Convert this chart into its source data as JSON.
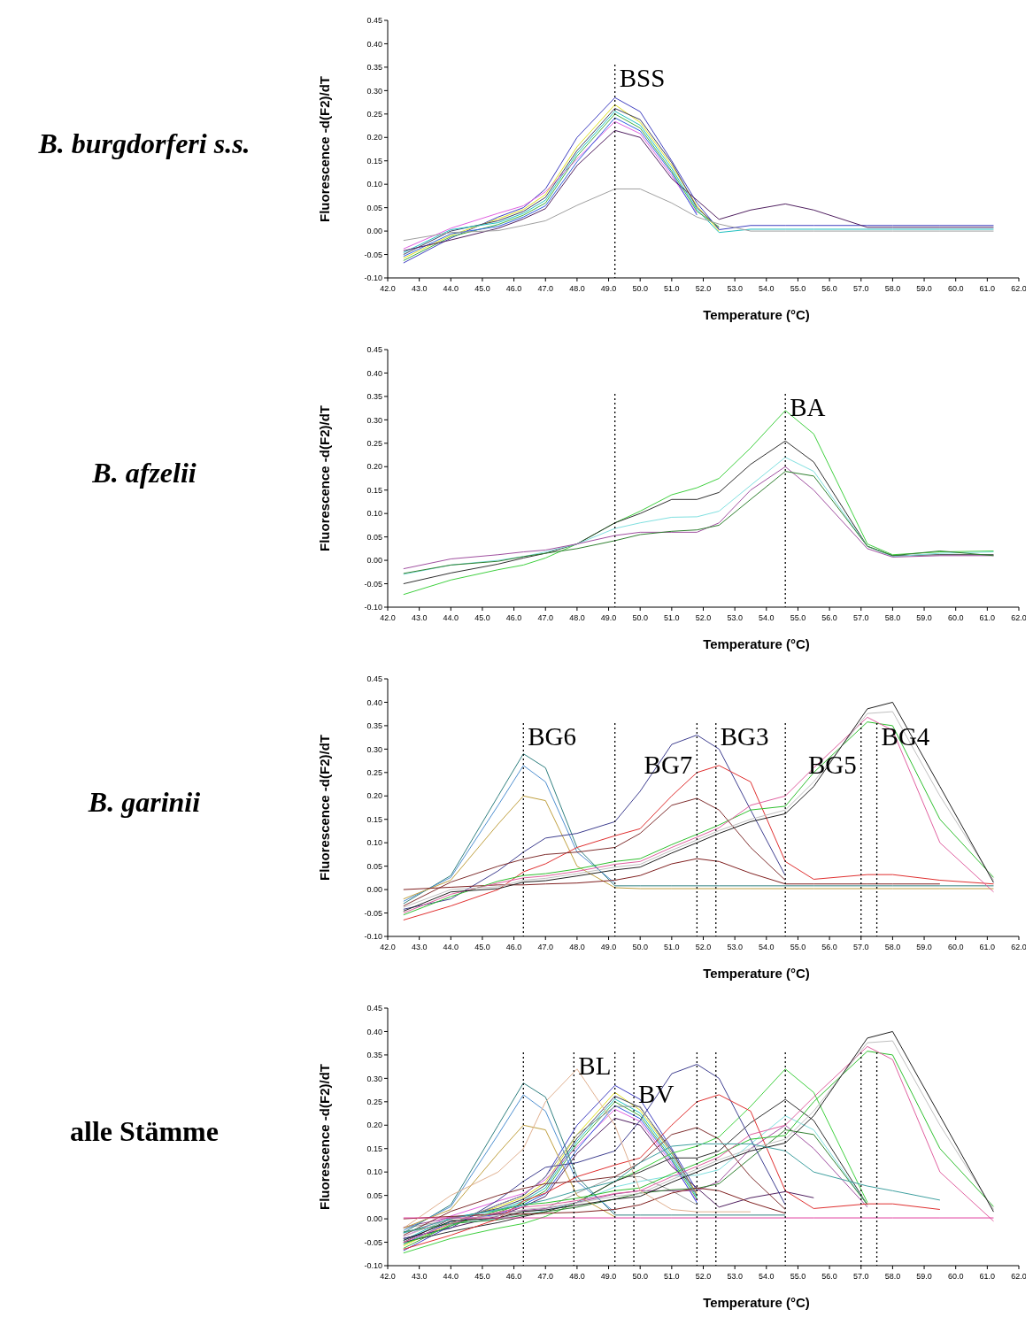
{
  "chart_data": [
    {
      "type": "line",
      "title": "B. burgdorferi s.s.",
      "xlabel": "Temperature (°C)",
      "ylabel": "Fluorescence -d(F2)/dT",
      "xlim": [
        42,
        62
      ],
      "ylim": [
        -0.1,
        0.45
      ],
      "xticks": [
        {
          "value": 42,
          "label": "42.0"
        },
        {
          "value": 43,
          "label": "43.0"
        },
        {
          "value": 44,
          "label": "44.0"
        },
        {
          "value": 45,
          "label": "45.0"
        },
        {
          "value": 46,
          "label": "46.0"
        },
        {
          "value": 47,
          "label": "47.0"
        },
        {
          "value": 48,
          "label": "48.0"
        },
        {
          "value": 49,
          "label": "49.0"
        },
        {
          "value": 50,
          "label": "50.0"
        },
        {
          "value": 51,
          "label": "51.0"
        },
        {
          "value": 52,
          "label": "52.0"
        },
        {
          "value": 53,
          "label": "53.0"
        },
        {
          "value": 54,
          "label": "54.0"
        },
        {
          "value": 55,
          "label": "55.0"
        },
        {
          "value": 56,
          "label": "56.0"
        },
        {
          "value": 57,
          "label": "57.0"
        },
        {
          "value": 58,
          "label": "58.0"
        },
        {
          "value": 59,
          "label": "59.0"
        },
        {
          "value": 60,
          "label": "60.0"
        },
        {
          "value": 61,
          "label": "61.0"
        },
        {
          "value": 62,
          "label": "62.0"
        }
      ],
      "yticks": [
        -0.05,
        {
          "value": -0.1,
          "label": "-0.10"
        },
        {
          "value": 0,
          "label": "0.00"
        },
        0.05,
        {
          "value": 0.1,
          "label": "0.10"
        },
        0.15,
        {
          "value": 0.2,
          "label": "0.20"
        },
        0.25,
        {
          "value": 0.3,
          "label": "0.30"
        },
        0.35,
        {
          "value": 0.4,
          "label": "0.40"
        },
        0.45
      ],
      "x": [
        42.5,
        44,
        45.5,
        46.3,
        47,
        48,
        49.2,
        50,
        51,
        51.8,
        52.5,
        53.5,
        54.6,
        55.5,
        57.2,
        58,
        59.5,
        61.2
      ],
      "series": [
        {
          "color": "#4040c0",
          "values": [
            -0.068,
            -0.015,
            0.03,
            0.05,
            0.09,
            0.2,
            0.285,
            0.255,
            0.15,
            0.06,
            0.003,
            0.012,
            0.012,
            0.012,
            0.012,
            0.012,
            0.012,
            0.012
          ]
        },
        {
          "color": "#e0e020",
          "values": [
            -0.058,
            -0.009,
            0.026,
            0.046,
            0.078,
            0.18,
            0.27,
            0.232,
            0.14,
            0.054,
            0,
            null,
            null,
            null,
            null,
            null,
            null,
            null
          ]
        },
        {
          "color": "#404060",
          "values": [
            -0.05,
            0,
            0.022,
            0.042,
            0.072,
            0.172,
            0.262,
            0.238,
            0.146,
            0.05,
            0.006,
            null,
            null,
            null,
            null,
            null,
            null,
            null
          ]
        },
        {
          "color": "#20c0c0",
          "values": [
            -0.046,
            0.003,
            0.018,
            0.038,
            0.066,
            0.166,
            0.256,
            0.226,
            0.134,
            0.046,
            -0.003,
            0.004,
            0.004,
            0.004,
            0.004,
            0.004,
            0.004,
            0.004
          ]
        },
        {
          "color": "#40b040",
          "values": [
            -0.063,
            -0.012,
            0.014,
            0.034,
            0.06,
            0.16,
            0.25,
            0.22,
            0.128,
            0.042,
            0.009,
            null,
            null,
            null,
            null,
            null,
            null,
            null
          ]
        },
        {
          "color": "#e060e0",
          "values": [
            -0.038,
            0.006,
            0.038,
            0.054,
            0.084,
            0.154,
            0.234,
            0.208,
            0.118,
            0.038,
            null,
            null,
            null,
            null,
            null,
            null,
            null,
            null
          ]
        },
        {
          "color": "#3060e0",
          "values": [
            -0.054,
            -0.006,
            0.01,
            0.03,
            0.054,
            0.148,
            0.242,
            0.214,
            0.124,
            0.034,
            null,
            null,
            null,
            null,
            null,
            null,
            null,
            null
          ]
        },
        {
          "color": "#502060",
          "values": [
            -0.042,
            -0.019,
            0.006,
            0.026,
            0.048,
            0.14,
            0.215,
            0.2,
            0.112,
            0.066,
            0.025,
            0.045,
            0.058,
            0.045,
            0.008,
            0.008,
            0.008,
            0.008
          ]
        },
        {
          "color": "#a0a0a0",
          "values": [
            -0.02,
            -0.003,
            0.001,
            0.012,
            0.022,
            0.055,
            0.09,
            0.09,
            0.06,
            0.03,
            0.015,
            0,
            0,
            0,
            0,
            0,
            0,
            0
          ]
        }
      ],
      "ref_lines": [
        {
          "axis": "x",
          "value": 49.2,
          "label": "BSS"
        }
      ]
    },
    {
      "type": "line",
      "title": "B. afzelii",
      "xlabel": "Temperature (°C)",
      "ylabel": "Fluorescence -d(F2)/dT",
      "xlim": [
        42,
        62
      ],
      "ylim": [
        -0.1,
        0.45
      ],
      "xticks": [
        {
          "value": 42,
          "label": "42.0"
        },
        {
          "value": 43,
          "label": "43.0"
        },
        {
          "value": 44,
          "label": "44.0"
        },
        {
          "value": 45,
          "label": "45.0"
        },
        {
          "value": 46,
          "label": "46.0"
        },
        {
          "value": 47,
          "label": "47.0"
        },
        {
          "value": 48,
          "label": "48.0"
        },
        {
          "value": 49,
          "label": "49.0"
        },
        {
          "value": 50,
          "label": "50.0"
        },
        {
          "value": 51,
          "label": "51.0"
        },
        {
          "value": 52,
          "label": "52.0"
        },
        {
          "value": 53,
          "label": "53.0"
        },
        {
          "value": 54,
          "label": "54.0"
        },
        {
          "value": 55,
          "label": "55.0"
        },
        {
          "value": 56,
          "label": "56.0"
        },
        {
          "value": 57,
          "label": "57.0"
        },
        {
          "value": 58,
          "label": "58.0"
        },
        {
          "value": 59,
          "label": "59.0"
        },
        {
          "value": 60,
          "label": "60.0"
        },
        {
          "value": 61,
          "label": "61.0"
        },
        {
          "value": 62,
          "label": "62.0"
        }
      ],
      "yticks": [
        -0.05,
        {
          "value": -0.1,
          "label": "-0.10"
        },
        {
          "value": 0,
          "label": "0.00"
        },
        0.05,
        {
          "value": 0.1,
          "label": "0.10"
        },
        0.15,
        {
          "value": 0.2,
          "label": "0.20"
        },
        0.25,
        {
          "value": 0.3,
          "label": "0.30"
        },
        0.35,
        {
          "value": 0.4,
          "label": "0.40"
        },
        0.45
      ],
      "x": [
        42.5,
        44,
        45.5,
        46.3,
        47,
        48,
        49.2,
        50,
        51,
        51.8,
        52.5,
        53.5,
        54.6,
        55.5,
        57.2,
        58,
        59.5,
        61.2
      ],
      "series": [
        {
          "color": "#40d040",
          "values": [
            -0.073,
            -0.042,
            -0.02,
            -0.01,
            0.005,
            0.035,
            0.08,
            0.105,
            0.14,
            0.155,
            0.175,
            0.24,
            0.32,
            0.27,
            0.035,
            0.012,
            0.018,
            0.02
          ]
        },
        {
          "color": "#303030",
          "values": [
            -0.05,
            -0.027,
            -0.008,
            0.005,
            0.015,
            0.035,
            0.08,
            0.1,
            0.13,
            0.13,
            0.145,
            0.205,
            0.255,
            0.21,
            0.03,
            0.01,
            0.012,
            0.012
          ]
        },
        {
          "color": "#80e0e0",
          "values": [
            -0.03,
            -0.01,
            0,
            0.008,
            0.018,
            0.035,
            0.068,
            0.08,
            0.092,
            0.093,
            0.105,
            0.16,
            0.22,
            0.19,
            0.03,
            0.008,
            0.015,
            0.018
          ]
        },
        {
          "color": "#a050a0",
          "values": [
            -0.018,
            0.003,
            0.012,
            0.018,
            0.022,
            0.035,
            0.053,
            0.06,
            0.06,
            0.06,
            0.08,
            0.15,
            0.2,
            0.15,
            0.025,
            0.007,
            0.01,
            0.01
          ]
        },
        {
          "color": "#308030",
          "values": [
            -0.028,
            -0.01,
            -0.002,
            0.008,
            0.015,
            0.025,
            0.042,
            0.055,
            0.062,
            0.065,
            0.075,
            0.13,
            0.19,
            0.18,
            0.03,
            0.01,
            0.02,
            0.01
          ]
        }
      ],
      "ref_lines": [
        {
          "axis": "x",
          "value": 49.2,
          "label": null
        },
        {
          "axis": "x",
          "value": 54.6,
          "label": "BA"
        }
      ]
    },
    {
      "type": "line",
      "title": "B. garinii",
      "xlabel": "Temperature (°C)",
      "ylabel": "Fluorescence -d(F2)/dT",
      "xlim": [
        42,
        62
      ],
      "ylim": [
        -0.1,
        0.45
      ],
      "xticks": [
        {
          "value": 42,
          "label": "42.0"
        },
        {
          "value": 43,
          "label": "43.0"
        },
        {
          "value": 44,
          "label": "44.0"
        },
        {
          "value": 45,
          "label": "45.0"
        },
        {
          "value": 46,
          "label": "46.0"
        },
        {
          "value": 47,
          "label": "47.0"
        },
        {
          "value": 48,
          "label": "48.0"
        },
        {
          "value": 49,
          "label": "49.0"
        },
        {
          "value": 50,
          "label": "50.0"
        },
        {
          "value": 51,
          "label": "51.0"
        },
        {
          "value": 52,
          "label": "52.0"
        },
        {
          "value": 53,
          "label": "53.0"
        },
        {
          "value": 54,
          "label": "54.0"
        },
        {
          "value": 55,
          "label": "55.0"
        },
        {
          "value": 56,
          "label": "56.0"
        },
        {
          "value": 57,
          "label": "57.0"
        },
        {
          "value": 58,
          "label": "58.0"
        },
        {
          "value": 59,
          "label": "59.0"
        },
        {
          "value": 60,
          "label": "60.0"
        },
        {
          "value": 61,
          "label": "61.0"
        },
        {
          "value": 62,
          "label": "62.0"
        }
      ],
      "yticks": [
        -0.05,
        {
          "value": -0.1,
          "label": "-0.10"
        },
        {
          "value": 0,
          "label": "0.00"
        },
        0.05,
        {
          "value": 0.1,
          "label": "0.10"
        },
        0.15,
        {
          "value": 0.2,
          "label": "0.20"
        },
        0.25,
        {
          "value": 0.3,
          "label": "0.30"
        },
        0.35,
        {
          "value": 0.4,
          "label": "0.40"
        },
        0.45
      ],
      "x": [
        42.5,
        44,
        45.5,
        46.3,
        47,
        48,
        49.2,
        50,
        51,
        51.8,
        52.5,
        53.5,
        54.6,
        55.5,
        57.2,
        58,
        59.5,
        61.2
      ],
      "series": [
        {
          "color": "#308080",
          "values": [
            -0.03,
            0.03,
            0.2,
            0.29,
            0.26,
            0.09,
            0.008,
            0.008,
            0.008,
            0.008,
            0.008,
            0.008,
            0.008,
            0.008,
            0.008,
            0.008,
            0.008,
            0.008
          ]
        },
        {
          "color": "#5090d0",
          "values": [
            -0.025,
            0.026,
            0.18,
            0.265,
            0.23,
            0.08,
            0.014,
            null,
            null,
            null,
            null,
            null,
            null,
            null,
            null,
            null,
            null,
            null
          ]
        },
        {
          "color": "#c0a040",
          "values": [
            -0.02,
            0.02,
            0.14,
            0.2,
            0.19,
            0.05,
            0.004,
            0.002,
            0.002,
            0.002,
            0.002,
            0.002,
            0.002,
            0.002,
            0.002,
            0.002,
            0.002,
            0.002
          ]
        },
        {
          "color": "#404090",
          "values": [
            -0.042,
            -0.02,
            0.04,
            0.08,
            0.11,
            0.12,
            0.145,
            0.21,
            0.31,
            0.33,
            0.3,
            0.17,
            0.03,
            null,
            null,
            null,
            null,
            null
          ]
        },
        {
          "color": "#e03030",
          "values": [
            -0.065,
            -0.035,
            0,
            0.038,
            0.055,
            0.09,
            0.115,
            0.13,
            0.2,
            0.25,
            0.265,
            0.23,
            0.06,
            0.022,
            0.032,
            0.032,
            0.02,
            0.012
          ]
        },
        {
          "color": "#803030",
          "values": [
            -0.035,
            0.016,
            0.05,
            0.065,
            0.075,
            0.08,
            0.09,
            0.12,
            0.18,
            0.195,
            0.17,
            0.09,
            0.02,
            null,
            null,
            null,
            null,
            null
          ]
        },
        {
          "color": "#802020",
          "values": [
            0,
            0.005,
            0.01,
            0.01,
            0.012,
            0.014,
            0.02,
            0.03,
            0.055,
            0.066,
            0.06,
            0.035,
            0.012,
            0.012,
            0.012,
            0.012,
            0.012,
            null
          ]
        },
        {
          "color": "#30c030",
          "values": [
            -0.054,
            -0.015,
            0.018,
            0.03,
            0.034,
            0.044,
            0.06,
            0.066,
            0.096,
            0.118,
            0.138,
            0.17,
            0.178,
            0.25,
            0.358,
            0.35,
            0.15,
            0.026
          ]
        },
        {
          "color": "#e060a0",
          "values": [
            -0.05,
            -0.01,
            0.014,
            0.025,
            0.029,
            0.039,
            0.054,
            0.06,
            0.09,
            0.112,
            0.132,
            0.18,
            0.2,
            0.26,
            0.368,
            0.34,
            0.1,
            -0.005
          ]
        },
        {
          "color": "#c0c0c0",
          "values": [
            -0.038,
            0,
            0.006,
            0.02,
            0.024,
            0.034,
            0.048,
            0.054,
            0.084,
            0.106,
            0.126,
            0.15,
            0.17,
            0.23,
            0.376,
            0.38,
            0.2,
            0.02
          ]
        },
        {
          "color": "#202020",
          "values": [
            -0.046,
            -0.005,
            0.002,
            0.016,
            0.019,
            0.029,
            0.042,
            0.048,
            0.078,
            0.1,
            0.12,
            0.145,
            0.162,
            0.22,
            0.386,
            0.4,
            0.22,
            0.015
          ]
        }
      ],
      "ref_lines": [
        {
          "axis": "x",
          "value": 46.3,
          "label": "BG6"
        },
        {
          "axis": "x",
          "value": 49.2,
          "label": null
        },
        {
          "axis": "x",
          "value": 51.8,
          "label": "BG7"
        },
        {
          "axis": "x",
          "value": 52.4,
          "label": "BG3"
        },
        {
          "axis": "x",
          "value": 54.6,
          "label": null
        },
        {
          "axis": "x",
          "value": 57,
          "label": "BG5"
        },
        {
          "axis": "x",
          "value": 57.5,
          "label": "BG4"
        }
      ]
    },
    {
      "type": "line",
      "title": "alle Stämme",
      "xlabel": "Temperature (°C)",
      "ylabel": "Fluorescence -d(F2)/dT",
      "xlim": [
        42,
        62
      ],
      "ylim": [
        -0.1,
        0.45
      ],
      "xticks": [
        {
          "value": 42,
          "label": "42.0"
        },
        {
          "value": 43,
          "label": "43.0"
        },
        {
          "value": 44,
          "label": "44.0"
        },
        {
          "value": 45,
          "label": "45.0"
        },
        {
          "value": 46,
          "label": "46.0"
        },
        {
          "value": 47,
          "label": "47.0"
        },
        {
          "value": 48,
          "label": "48.0"
        },
        {
          "value": 49,
          "label": "49.0"
        },
        {
          "value": 50,
          "label": "50.0"
        },
        {
          "value": 51,
          "label": "51.0"
        },
        {
          "value": 52,
          "label": "52.0"
        },
        {
          "value": 53,
          "label": "53.0"
        },
        {
          "value": 54,
          "label": "54.0"
        },
        {
          "value": 55,
          "label": "55.0"
        },
        {
          "value": 56,
          "label": "56.0"
        },
        {
          "value": 57,
          "label": "57.0"
        },
        {
          "value": 58,
          "label": "58.0"
        },
        {
          "value": 59,
          "label": "59.0"
        },
        {
          "value": 60,
          "label": "60.0"
        },
        {
          "value": 61,
          "label": "61.0"
        },
        {
          "value": 62,
          "label": "62.0"
        }
      ],
      "yticks": [
        -0.05,
        {
          "value": -0.1,
          "label": "-0.10"
        },
        {
          "value": 0,
          "label": "0.00"
        },
        0.05,
        {
          "value": 0.1,
          "label": "0.10"
        },
        0.15,
        {
          "value": 0.2,
          "label": "0.20"
        },
        0.25,
        {
          "value": 0.3,
          "label": "0.30"
        },
        0.35,
        {
          "value": 0.4,
          "label": "0.40"
        },
        0.45
      ],
      "x": [
        42.5,
        44,
        45.5,
        46.3,
        47,
        48,
        49.2,
        50,
        51,
        51.8,
        52.5,
        53.5,
        54.6,
        55.5,
        57.2,
        58,
        59.5,
        61.2
      ],
      "series": [
        {
          "color": "#4040c0",
          "values": [
            -0.068,
            -0.015,
            0.03,
            0.05,
            0.09,
            0.2,
            0.285,
            0.255,
            0.15,
            0.06,
            null,
            null,
            null,
            null,
            null,
            null,
            null,
            null
          ]
        },
        {
          "color": "#e0e020",
          "values": [
            -0.058,
            -0.009,
            0.026,
            0.046,
            0.078,
            0.18,
            0.27,
            0.232,
            0.14,
            0.054,
            null,
            null,
            null,
            null,
            null,
            null,
            null,
            null
          ]
        },
        {
          "color": "#404060",
          "values": [
            -0.05,
            0,
            0.022,
            0.042,
            0.072,
            0.172,
            0.262,
            0.238,
            0.146,
            0.05,
            null,
            null,
            null,
            null,
            null,
            null,
            null,
            null
          ]
        },
        {
          "color": "#20c0c0",
          "values": [
            -0.046,
            0.003,
            0.018,
            0.038,
            0.066,
            0.166,
            0.256,
            0.226,
            0.134,
            0.046,
            null,
            null,
            null,
            null,
            null,
            null,
            null,
            null
          ]
        },
        {
          "color": "#40b040",
          "values": [
            -0.063,
            -0.012,
            0.014,
            0.034,
            0.06,
            0.16,
            0.25,
            0.22,
            0.128,
            0.042,
            null,
            null,
            null,
            null,
            null,
            null,
            null,
            null
          ]
        },
        {
          "color": "#e060e0",
          "values": [
            -0.038,
            0.006,
            0.038,
            0.054,
            0.084,
            0.154,
            0.234,
            0.208,
            0.118,
            0.038,
            null,
            null,
            null,
            null,
            null,
            null,
            null,
            null
          ]
        },
        {
          "color": "#3060e0",
          "values": [
            -0.054,
            -0.006,
            0.01,
            0.03,
            0.054,
            0.148,
            0.242,
            0.214,
            0.124,
            0.034,
            null,
            null,
            null,
            null,
            null,
            null,
            null,
            null
          ]
        },
        {
          "color": "#502060",
          "values": [
            -0.042,
            -0.019,
            0.006,
            0.026,
            0.048,
            0.14,
            0.215,
            0.2,
            0.112,
            0.066,
            0.025,
            0.045,
            0.058,
            0.045,
            null,
            null,
            null,
            null
          ]
        },
        {
          "color": "#a0a0a0",
          "values": [
            -0.02,
            -0.003,
            0.001,
            0.012,
            0.022,
            0.055,
            0.09,
            0.09,
            0.06,
            0.03,
            null,
            null,
            null,
            null,
            null,
            null,
            null,
            null
          ]
        },
        {
          "color": "#40d040",
          "values": [
            -0.073,
            -0.042,
            -0.02,
            -0.01,
            0.005,
            0.035,
            0.08,
            0.105,
            0.14,
            0.155,
            0.175,
            0.24,
            0.32,
            0.27,
            0.035,
            null,
            null,
            null
          ]
        },
        {
          "color": "#303030",
          "values": [
            -0.05,
            -0.027,
            -0.008,
            0.005,
            0.015,
            0.035,
            0.08,
            0.1,
            0.13,
            0.13,
            0.145,
            0.205,
            0.255,
            0.21,
            0.03,
            null,
            null,
            null
          ]
        },
        {
          "color": "#80e0e0",
          "values": [
            -0.03,
            -0.01,
            0,
            0.008,
            0.018,
            0.035,
            0.068,
            0.08,
            0.092,
            0.093,
            0.105,
            0.16,
            0.22,
            0.19,
            0.03,
            null,
            null,
            null
          ]
        },
        {
          "color": "#a050a0",
          "values": [
            -0.018,
            0.003,
            0.012,
            0.018,
            0.022,
            0.035,
            0.053,
            0.06,
            0.06,
            0.06,
            0.08,
            0.15,
            0.2,
            0.15,
            0.025,
            null,
            null,
            null
          ]
        },
        {
          "color": "#308030",
          "values": [
            -0.028,
            -0.01,
            -0.002,
            0.008,
            0.015,
            0.025,
            0.042,
            0.055,
            0.062,
            0.065,
            0.075,
            0.13,
            0.19,
            0.18,
            0.03,
            null,
            null,
            null
          ]
        },
        {
          "color": "#308080",
          "values": [
            -0.03,
            0.03,
            0.2,
            0.29,
            0.26,
            0.09,
            0.008,
            0.008,
            0.008,
            0.008,
            0.008,
            0.008,
            0.008,
            null,
            null,
            null,
            null,
            null
          ]
        },
        {
          "color": "#5090d0",
          "values": [
            -0.025,
            0.026,
            0.18,
            0.265,
            0.23,
            0.08,
            0.014,
            null,
            null,
            null,
            null,
            null,
            null,
            null,
            null,
            null,
            null,
            null
          ]
        },
        {
          "color": "#c0a040",
          "values": [
            -0.02,
            0.02,
            0.14,
            0.2,
            0.19,
            0.05,
            0.004,
            null,
            null,
            null,
            null,
            null,
            null,
            null,
            null,
            null,
            null,
            null
          ]
        },
        {
          "color": "#404090",
          "values": [
            -0.042,
            -0.02,
            0.04,
            0.08,
            0.11,
            0.12,
            0.145,
            0.21,
            0.31,
            0.33,
            0.3,
            0.17,
            0.03,
            null,
            null,
            null,
            null,
            null
          ]
        },
        {
          "color": "#e03030",
          "values": [
            -0.065,
            -0.035,
            0,
            0.038,
            0.055,
            0.09,
            0.115,
            0.13,
            0.2,
            0.25,
            0.265,
            0.23,
            0.06,
            0.022,
            0.032,
            0.032,
            0.02,
            null
          ]
        },
        {
          "color": "#803030",
          "values": [
            -0.035,
            0.016,
            0.05,
            0.065,
            0.075,
            0.08,
            0.09,
            0.12,
            0.18,
            0.195,
            0.17,
            0.09,
            0.02,
            null,
            null,
            null,
            null,
            null
          ]
        },
        {
          "color": "#802020",
          "values": [
            0,
            0.005,
            0.01,
            0.01,
            0.012,
            0.014,
            0.02,
            0.03,
            0.055,
            0.066,
            0.06,
            0.035,
            0.012,
            null,
            null,
            null,
            null,
            null
          ]
        },
        {
          "color": "#30c030",
          "values": [
            -0.054,
            -0.015,
            0.018,
            0.03,
            0.034,
            0.044,
            0.06,
            0.066,
            0.096,
            0.118,
            0.138,
            0.17,
            0.178,
            0.25,
            0.358,
            0.35,
            0.15,
            0.026
          ]
        },
        {
          "color": "#e060a0",
          "values": [
            -0.05,
            -0.01,
            0.014,
            0.025,
            0.029,
            0.039,
            0.054,
            0.06,
            0.09,
            0.112,
            0.132,
            0.18,
            0.2,
            0.26,
            0.368,
            0.34,
            0.1,
            -0.005
          ]
        },
        {
          "color": "#c0c0c0",
          "values": [
            -0.038,
            0,
            0.006,
            0.02,
            0.024,
            0.034,
            0.048,
            0.054,
            0.084,
            0.106,
            0.126,
            0.15,
            0.17,
            0.23,
            0.376,
            0.38,
            0.2,
            0.02
          ]
        },
        {
          "color": "#202020",
          "values": [
            -0.046,
            -0.005,
            0.002,
            0.016,
            0.019,
            0.029,
            0.042,
            0.048,
            0.078,
            0.1,
            0.12,
            0.145,
            0.162,
            0.22,
            0.386,
            0.4,
            0.22,
            0.015
          ]
        },
        {
          "color": "#e0b090",
          "values": [
            -0.02,
            0.05,
            0.1,
            0.15,
            0.25,
            0.32,
            0.2,
            0.06,
            0.02,
            0.015,
            0.015,
            0.015,
            null,
            null,
            null,
            null,
            null,
            null
          ]
        },
        {
          "color": "#909090",
          "values": [
            null,
            -0.01,
            0.03,
            0.05,
            0.09,
            0.18,
            0.24,
            0.24,
            0.14,
            0.05,
            null,
            null,
            null,
            null,
            null,
            null,
            null,
            null
          ]
        },
        {
          "color": "#40a0a0",
          "values": [
            -0.03,
            0,
            0.02,
            0.03,
            0.04,
            0.06,
            0.08,
            0.12,
            0.155,
            0.16,
            0.16,
            0.16,
            0.145,
            0.1,
            0.07,
            0.06,
            0.04,
            null
          ]
        },
        {
          "color": "#e040a0",
          "values": [
            0.002,
            0.002,
            0.002,
            0.002,
            0.002,
            0.002,
            0.002,
            0.002,
            0.002,
            0.002,
            0.002,
            0.002,
            0.002,
            0.002,
            0.002,
            0.002,
            0.002,
            0.002
          ]
        }
      ],
      "ref_lines": [
        {
          "axis": "x",
          "value": 46.3,
          "label": null
        },
        {
          "axis": "x",
          "value": 47.9,
          "label": "BL"
        },
        {
          "axis": "x",
          "value": 49.2,
          "label": null
        },
        {
          "axis": "x",
          "value": 49.8,
          "label": "BV"
        },
        {
          "axis": "x",
          "value": 51.8,
          "label": null
        },
        {
          "axis": "x",
          "value": 52.4,
          "label": null
        },
        {
          "axis": "x",
          "value": 54.6,
          "label": null
        },
        {
          "axis": "x",
          "value": 57,
          "label": null
        },
        {
          "axis": "x",
          "value": 57.5,
          "label": null
        }
      ]
    }
  ]
}
